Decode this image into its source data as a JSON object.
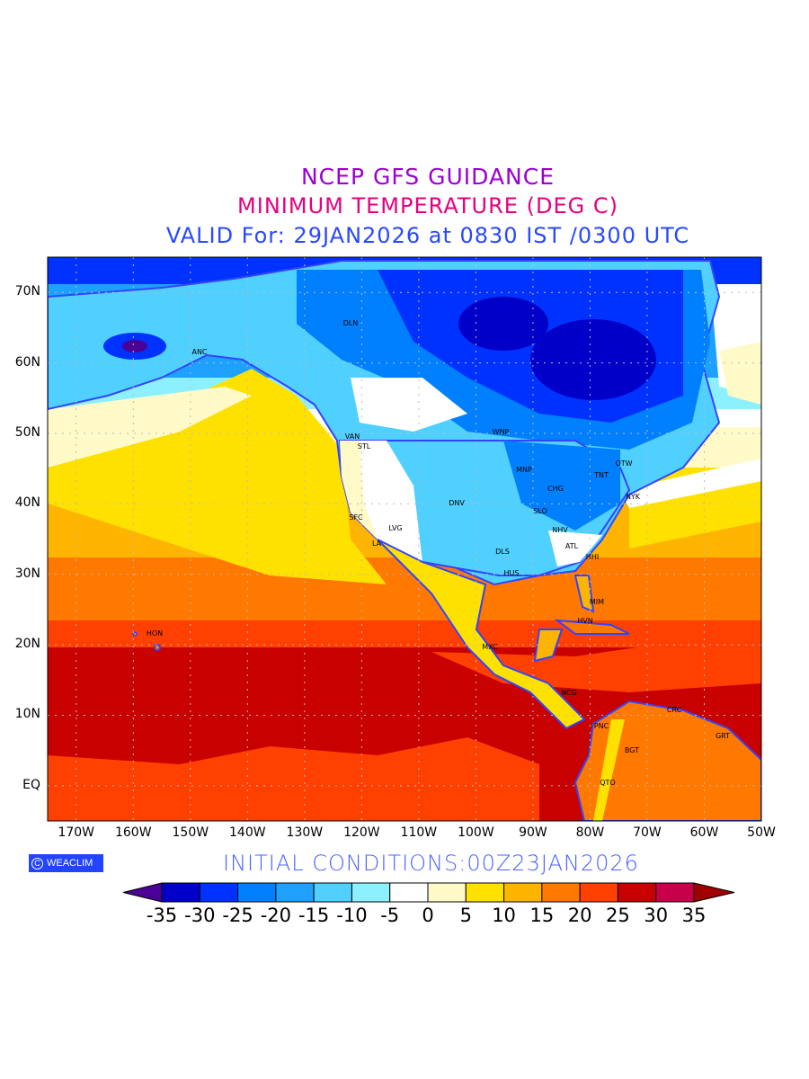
{
  "title": {
    "line1": "NCEP GFS GUIDANCE",
    "line2": "MINIMUM TEMPERATURE (DEG C)",
    "line3": "VALID For: 29JAN2026 at 0830 IST /0300 UTC"
  },
  "map": {
    "x_ticks": [
      "170W",
      "160W",
      "150W",
      "140W",
      "130W",
      "120W",
      "110W",
      "100W",
      "90W",
      "80W",
      "70W",
      "60W",
      "50W"
    ],
    "y_ticks": [
      "70N",
      "60N",
      "50N",
      "40N",
      "30N",
      "20N",
      "10N",
      "EQ"
    ],
    "cities": [
      "DLN",
      "ANC",
      "VAN",
      "STL",
      "WNP",
      "MNP",
      "OTW",
      "TNT",
      "NYK",
      "CHG",
      "SLO",
      "DNV",
      "SFC",
      "LVG",
      "LA",
      "NHV",
      "ATL",
      "HHI",
      "DLS",
      "HUS",
      "MIM",
      "HVN",
      "HON",
      "MXC",
      "NCG",
      "PNC",
      "CRC",
      "BGT",
      "GRT",
      "QTO"
    ]
  },
  "footer": {
    "logo_text": "WEACLIM",
    "logo_symbol": "C",
    "initial_conditions": "INITIAL CONDITIONS:00Z23JAN2026"
  },
  "colorbar": {
    "labels": [
      "-35",
      "-30",
      "-25",
      "-20",
      "-15",
      "-10",
      "-5",
      "0",
      "5",
      "10",
      "15",
      "20",
      "25",
      "30",
      "35"
    ],
    "under_color": "#4b0096",
    "colors": [
      "#0000c8",
      "#0032ff",
      "#0080ff",
      "#1ea0ff",
      "#50d0ff",
      "#8cf0ff",
      "#ffffff",
      "#fffac8",
      "#ffe100",
      "#ffb400",
      "#ff7800",
      "#ff4000",
      "#c80000",
      "#c8004b"
    ],
    "over_color": "#a00000"
  },
  "colors": {
    "coastline": "#3344ff"
  }
}
